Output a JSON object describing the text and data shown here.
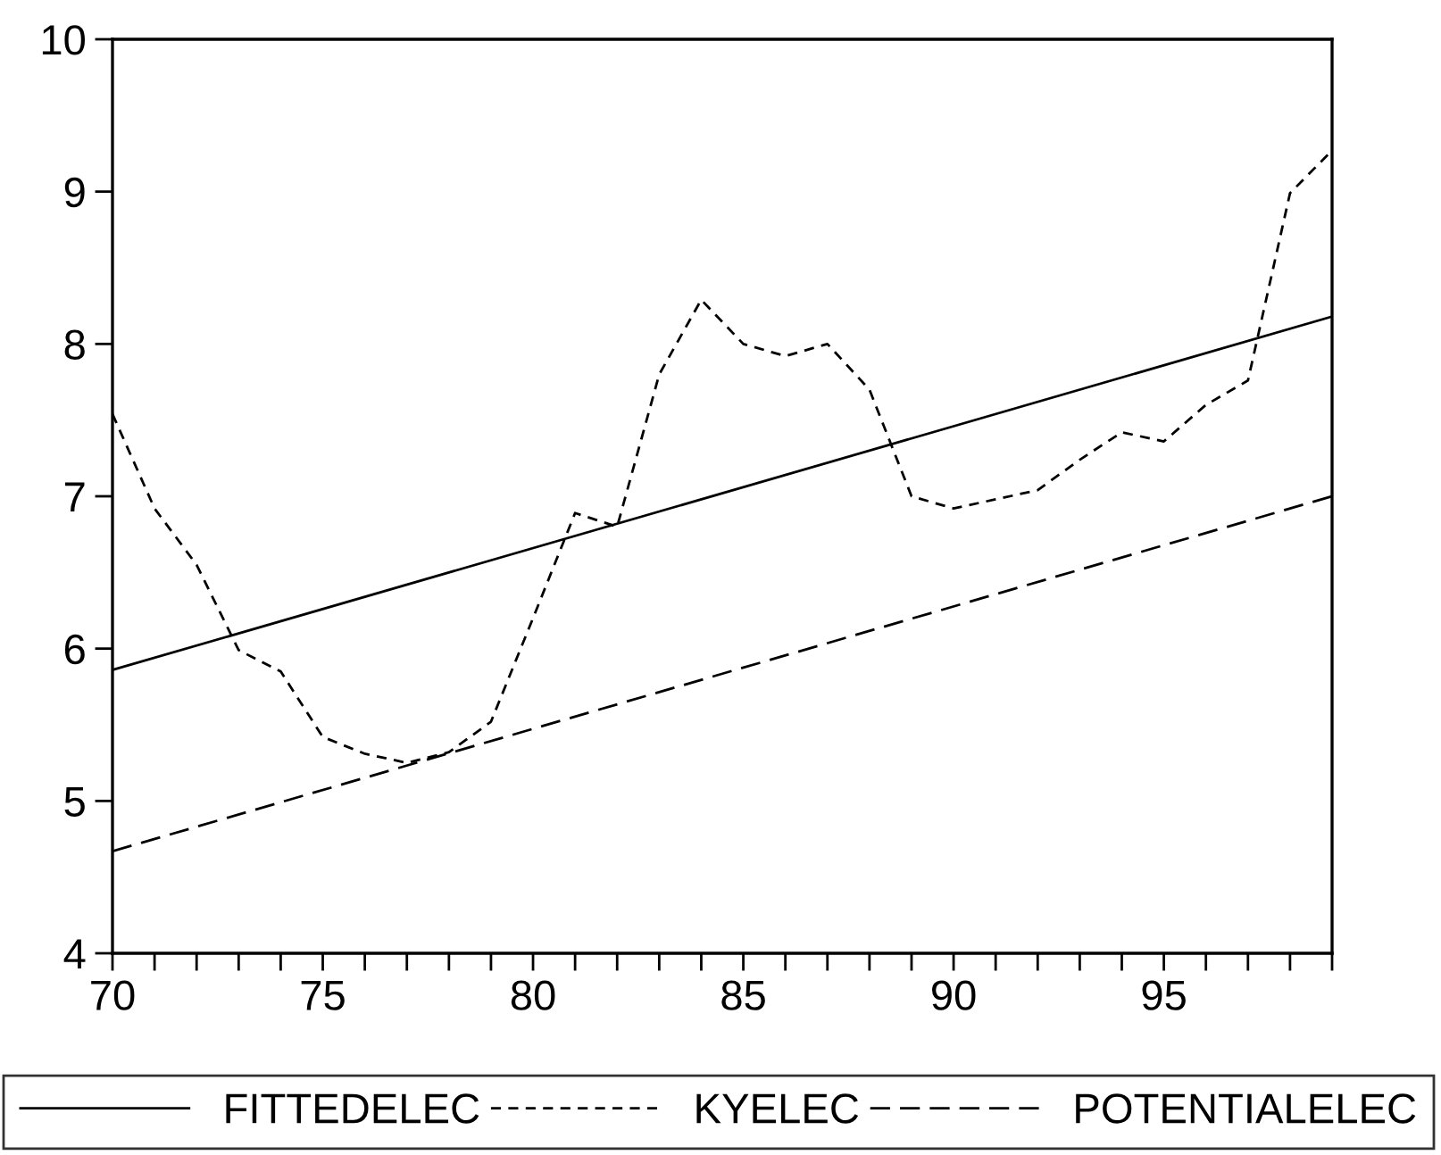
{
  "chart_data": {
    "type": "line",
    "xlim": [
      70,
      99
    ],
    "ylim": [
      4,
      10
    ],
    "xticks": [
      70,
      {
        "value": 71,
        "label": null
      },
      {
        "value": 72,
        "label": null
      },
      {
        "value": 73,
        "label": null
      },
      {
        "value": 74,
        "label": null
      },
      75,
      {
        "value": 76,
        "label": null
      },
      {
        "value": 77,
        "label": null
      },
      {
        "value": 78,
        "label": null
      },
      {
        "value": 79,
        "label": null
      },
      80,
      {
        "value": 81,
        "label": null
      },
      {
        "value": 82,
        "label": null
      },
      {
        "value": 83,
        "label": null
      },
      {
        "value": 84,
        "label": null
      },
      85,
      {
        "value": 86,
        "label": null
      },
      {
        "value": 87,
        "label": null
      },
      {
        "value": 88,
        "label": null
      },
      {
        "value": 89,
        "label": null
      },
      90,
      {
        "value": 91,
        "label": null
      },
      {
        "value": 92,
        "label": null
      },
      {
        "value": 93,
        "label": null
      },
      {
        "value": 94,
        "label": null
      },
      95,
      {
        "value": 96,
        "label": null
      },
      {
        "value": 97,
        "label": null
      },
      {
        "value": 98,
        "label": null
      },
      {
        "value": 99,
        "label": null
      }
    ],
    "yticks": [
      4,
      5,
      6,
      7,
      8,
      9,
      10
    ],
    "grid": false,
    "legend": "bottom",
    "marker": "none",
    "series": [
      {
        "name": "FITTEDELEC",
        "color": "#000000",
        "line_style": "solid",
        "x": [
          70,
          99
        ],
        "values": [
          5.86,
          8.18
        ]
      },
      {
        "name": "KYELEC",
        "color": "#000000",
        "line_style": "dotted",
        "x": [
          70,
          71,
          72,
          73,
          74,
          75,
          76,
          77,
          78,
          79,
          80,
          81,
          82,
          83,
          84,
          85,
          86,
          87,
          88,
          89,
          90,
          91,
          92,
          93,
          94,
          95,
          96,
          97,
          98,
          99
        ],
        "values": [
          7.54,
          6.92,
          6.55,
          5.99,
          5.85,
          5.42,
          5.31,
          5.25,
          5.32,
          5.52,
          6.2,
          6.89,
          6.8,
          7.8,
          8.29,
          8.0,
          7.92,
          8.0,
          7.7,
          7.0,
          6.92,
          6.98,
          7.04,
          7.24,
          7.42,
          7.36,
          7.6,
          7.76,
          8.99,
          9.27
        ]
      },
      {
        "name": "POTENTIALELEC",
        "color": "#000000",
        "line_style": "dashed",
        "x": [
          70,
          99
        ],
        "values": [
          4.67,
          7.0
        ]
      }
    ]
  }
}
